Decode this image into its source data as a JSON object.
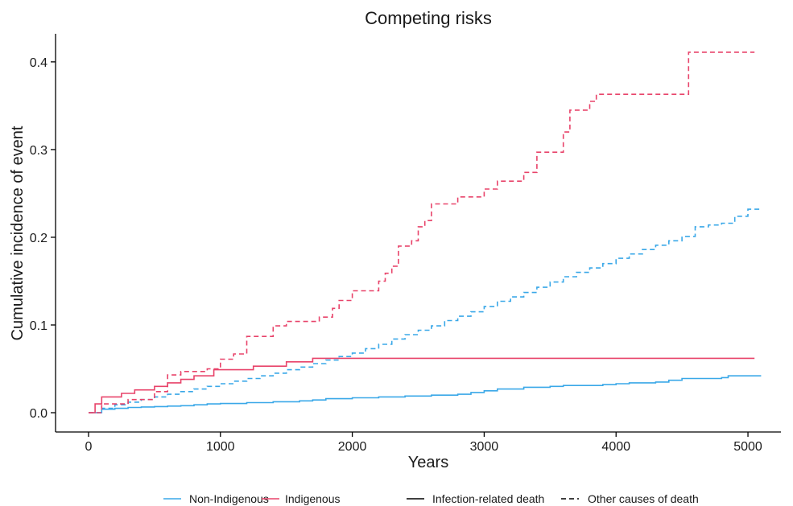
{
  "chart_data": {
    "type": "line",
    "step": true,
    "title": "Competing risks",
    "xlabel": "Years",
    "ylabel": "Cumulative incidence of event",
    "xlim": [
      -250,
      5250
    ],
    "ylim": [
      -0.022,
      0.432
    ],
    "xticks": [
      0,
      1000,
      2000,
      3000,
      4000,
      5000
    ],
    "yticks": [
      0.0,
      0.1,
      0.2,
      0.3,
      0.4
    ],
    "xtick_labels": [
      "0",
      "1000",
      "2000",
      "3000",
      "4000",
      "5000"
    ],
    "ytick_labels": [
      "0.0",
      "0.1",
      "0.2",
      "0.3",
      "0.4"
    ],
    "grid": false,
    "legend_position": "bottom",
    "legend": {
      "group_entries": [
        {
          "label": "Non-Indigenous",
          "color": "#3aa8e8"
        },
        {
          "label": "Indigenous",
          "color": "#e8436a"
        }
      ],
      "cause_entries": [
        {
          "label": "Infection-related death",
          "dash": "solid"
        },
        {
          "label": "Other causes of death",
          "dash": "dashed"
        }
      ]
    },
    "series": [
      {
        "group": "Non-Indigenous",
        "cause": "Infection-related death",
        "color": "#3aa8e8",
        "dash": "solid",
        "x": [
          0,
          100,
          200,
          300,
          400,
          500,
          600,
          700,
          800,
          900,
          1000,
          1200,
          1400,
          1600,
          1700,
          1800,
          2000,
          2200,
          2400,
          2600,
          2800,
          2900,
          3000,
          3100,
          3300,
          3500,
          3600,
          3800,
          3900,
          4000,
          4100,
          4300,
          4400,
          4500,
          4800,
          4850,
          5100
        ],
        "y": [
          0.0,
          0.004,
          0.005,
          0.006,
          0.0065,
          0.007,
          0.0075,
          0.008,
          0.009,
          0.01,
          0.0105,
          0.0115,
          0.0125,
          0.0135,
          0.0145,
          0.016,
          0.017,
          0.018,
          0.019,
          0.02,
          0.021,
          0.023,
          0.025,
          0.027,
          0.029,
          0.03,
          0.031,
          0.031,
          0.032,
          0.033,
          0.034,
          0.035,
          0.037,
          0.039,
          0.04,
          0.042,
          0.042
        ]
      },
      {
        "group": "Non-Indigenous",
        "cause": "Other causes of death",
        "color": "#3aa8e8",
        "dash": "dashed",
        "x": [
          0,
          100,
          200,
          300,
          400,
          500,
          600,
          700,
          800,
          900,
          1000,
          1100,
          1200,
          1300,
          1400,
          1500,
          1600,
          1700,
          1800,
          1900,
          2000,
          2100,
          2200,
          2300,
          2400,
          2500,
          2600,
          2700,
          2800,
          2900,
          3000,
          3100,
          3200,
          3300,
          3400,
          3500,
          3600,
          3700,
          3800,
          3900,
          4000,
          4100,
          4200,
          4300,
          4400,
          4500,
          4600,
          4700,
          4800,
          4900,
          5000,
          5100
        ],
        "y": [
          0.0,
          0.005,
          0.009,
          0.012,
          0.015,
          0.018,
          0.021,
          0.024,
          0.027,
          0.03,
          0.033,
          0.036,
          0.039,
          0.042,
          0.045,
          0.049,
          0.052,
          0.056,
          0.06,
          0.064,
          0.068,
          0.073,
          0.078,
          0.084,
          0.089,
          0.094,
          0.099,
          0.105,
          0.11,
          0.115,
          0.121,
          0.127,
          0.132,
          0.137,
          0.143,
          0.149,
          0.155,
          0.16,
          0.165,
          0.17,
          0.176,
          0.181,
          0.186,
          0.191,
          0.196,
          0.201,
          0.212,
          0.214,
          0.216,
          0.224,
          0.232,
          0.232
        ]
      },
      {
        "group": "Indigenous",
        "cause": "Infection-related death",
        "color": "#e8436a",
        "dash": "solid",
        "x": [
          0,
          50,
          100,
          250,
          350,
          500,
          600,
          700,
          800,
          950,
          1250,
          1500,
          1700,
          5050
        ],
        "y": [
          0.0,
          0.01,
          0.018,
          0.022,
          0.026,
          0.03,
          0.034,
          0.038,
          0.042,
          0.049,
          0.053,
          0.058,
          0.062,
          0.062
        ]
      },
      {
        "group": "Indigenous",
        "cause": "Other causes of death",
        "color": "#e8436a",
        "dash": "dashed",
        "x": [
          0,
          100,
          300,
          500,
          600,
          700,
          900,
          1000,
          1100,
          1200,
          1400,
          1500,
          1750,
          1850,
          1900,
          2000,
          2200,
          2250,
          2300,
          2350,
          2450,
          2500,
          2550,
          2600,
          2800,
          3000,
          3100,
          3300,
          3400,
          3600,
          3650,
          3800,
          3850,
          4550,
          5050
        ],
        "y": [
          0.0,
          0.01,
          0.015,
          0.024,
          0.043,
          0.047,
          0.05,
          0.061,
          0.067,
          0.087,
          0.099,
          0.104,
          0.109,
          0.119,
          0.128,
          0.139,
          0.15,
          0.159,
          0.167,
          0.19,
          0.196,
          0.212,
          0.219,
          0.238,
          0.246,
          0.255,
          0.264,
          0.274,
          0.297,
          0.32,
          0.345,
          0.355,
          0.363,
          0.411,
          0.411
        ]
      }
    ]
  }
}
